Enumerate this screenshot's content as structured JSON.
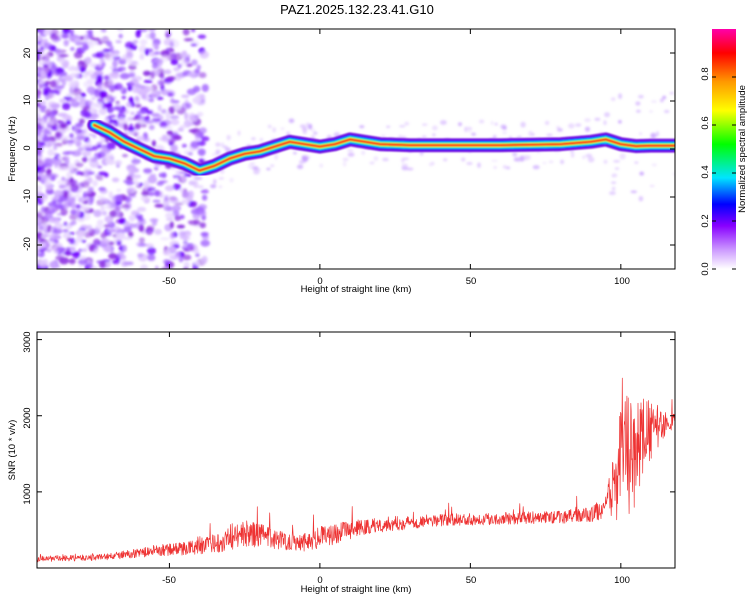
{
  "title": "PAZ1.2025.132.23.41.G10",
  "chart_data": [
    {
      "type": "heatmap",
      "xlabel": "Height of straight line (km)",
      "ylabel": "Frequency (Hz)",
      "xlim": [
        -94,
        118
      ],
      "ylim": [
        -25,
        25
      ],
      "xticks": [
        "-50",
        "0",
        "50",
        "100"
      ],
      "yticks": [
        "20",
        "10",
        "0",
        "-10",
        "-20"
      ],
      "colorbar": {
        "label": "Normalized spectral amplitude",
        "range": [
          0,
          1
        ],
        "ticks": [
          "0.0",
          "0.2",
          "0.4",
          "0.6",
          "0.8"
        ],
        "colors": [
          "#ffffff",
          "#cc99ff",
          "#8800ff",
          "#0000ff",
          "#00e5ff",
          "#00ff00",
          "#ffff00",
          "#ff9900",
          "#ff0000",
          "#ff00aa"
        ]
      },
      "ridge": {
        "x": [
          -75,
          -70,
          -65,
          -60,
          -55,
          -50,
          -45,
          -40,
          -35,
          -30,
          -25,
          -20,
          -15,
          -10,
          -5,
          0,
          5,
          10,
          15,
          20,
          30,
          40,
          50,
          60,
          70,
          80,
          90,
          95,
          100,
          105,
          110,
          118
        ],
        "frequency": [
          5,
          3.5,
          1.5,
          0,
          -1.5,
          -2,
          -3,
          -4.5,
          -3.5,
          -2,
          -1,
          -0.5,
          0.5,
          1.5,
          1,
          0.5,
          1,
          2,
          1.5,
          1,
          0.8,
          0.8,
          0.8,
          0.8,
          0.9,
          1,
          1.5,
          2,
          1,
          0.6,
          0.7,
          0.7
        ]
      }
    },
    {
      "type": "line",
      "xlabel": "Height of straight line (km)",
      "ylabel": "SNR (10 * v/v)",
      "xlim": [
        -94,
        118
      ],
      "ylim": [
        0,
        3100
      ],
      "xticks": [
        "-50",
        "0",
        "50",
        "100"
      ],
      "yticks": [
        "1000",
        "2000",
        "3000"
      ],
      "series": [
        {
          "color": "#ee3333",
          "x": [
            -94,
            -80,
            -70,
            -60,
            -50,
            -45,
            -40,
            -35,
            -30,
            -25,
            -20,
            -15,
            -10,
            -5,
            0,
            10,
            20,
            30,
            40,
            50,
            60,
            70,
            80,
            90,
            95,
            98,
            100,
            102,
            104,
            106,
            108,
            110,
            112,
            115,
            118
          ],
          "values": [
            120,
            130,
            150,
            200,
            240,
            260,
            280,
            320,
            400,
            450,
            430,
            380,
            350,
            350,
            400,
            500,
            570,
            600,
            630,
            640,
            650,
            660,
            670,
            700,
            800,
            1100,
            1400,
            1500,
            1350,
            1650,
            1750,
            1800,
            1850,
            1900,
            1950
          ],
          "noise": [
            40,
            40,
            45,
            60,
            80,
            90,
            100,
            120,
            180,
            180,
            160,
            130,
            120,
            130,
            150,
            120,
            100,
            90,
            80,
            80,
            80,
            80,
            85,
            100,
            150,
            500,
            700,
            900,
            700,
            600,
            500,
            400,
            300,
            150,
            100
          ]
        }
      ]
    }
  ]
}
